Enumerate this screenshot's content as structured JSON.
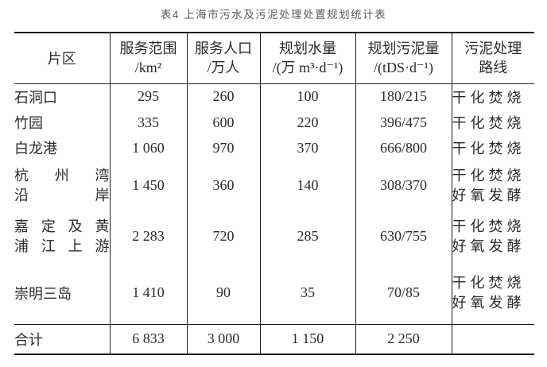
{
  "title": "表4 上海市污水及污泥处理处置规划统计表",
  "table": {
    "columns": [
      "片区",
      "服务范围\n/km²",
      "服务人口\n/万人",
      "规划水量\n/(万 m³·d⁻¹)",
      "规划污泥量\n/(tDS·d⁻¹)",
      "污泥处理\n路线"
    ],
    "rows": [
      {
        "district": "石洞口",
        "area": "295",
        "population": "260",
        "water": "100",
        "sludge": "180/215",
        "route": "干化焚烧"
      },
      {
        "district": "竹园",
        "area": "335",
        "population": "600",
        "water": "220",
        "sludge": "396/475",
        "route": "干化焚烧"
      },
      {
        "district": "白龙港",
        "area": "1 060",
        "population": "970",
        "water": "370",
        "sludge": "666/800",
        "route": "干化焚烧"
      },
      {
        "district": "杭 州 湾\n沿岸",
        "area": "1 450",
        "population": "360",
        "water": "140",
        "sludge": "308/370",
        "route": "干化焚烧\n好氧发酵"
      },
      {
        "district": "嘉 定 及 黄\n浦江上游",
        "area": "2 283",
        "population": "720",
        "water": "285",
        "sludge": "630/755",
        "route": "干化焚烧\n好氧发酵"
      },
      {
        "district": "崇明三岛",
        "area": "1 410",
        "population": "90",
        "water": "35",
        "sludge": "70/85",
        "route": "干化焚烧\n好氧发酵"
      }
    ],
    "total": {
      "district": "合计",
      "area": "6 833",
      "population": "3 000",
      "water": "1 150",
      "sludge": "2 250",
      "route": ""
    }
  }
}
